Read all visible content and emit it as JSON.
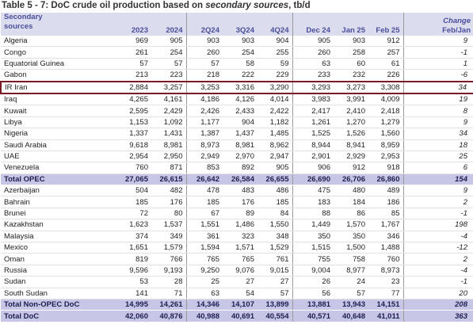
{
  "title": {
    "prefix": "Table 5 - 7: DoC crude oil production based on ",
    "emphasis": "secondary sources",
    "suffix": ", tb/d"
  },
  "table": {
    "header": {
      "first": [
        "Secondary",
        "sources"
      ],
      "columns": [
        "2023",
        "2024",
        "2Q24",
        "3Q24",
        "4Q24",
        "Dec 24",
        "Jan 25",
        "Feb 25"
      ],
      "change": [
        "Change",
        "Feb/Jan"
      ]
    },
    "rows": [
      {
        "cells": [
          "Algeria",
          "969",
          "905",
          "903",
          "903",
          "904",
          "905",
          "903",
          "912",
          "9"
        ]
      },
      {
        "cells": [
          "Congo",
          "261",
          "254",
          "260",
          "254",
          "255",
          "260",
          "258",
          "257",
          "-1"
        ]
      },
      {
        "cells": [
          "Equatorial Guinea",
          "57",
          "57",
          "57",
          "58",
          "59",
          "63",
          "60",
          "61",
          "1"
        ]
      },
      {
        "cells": [
          "Gabon",
          "213",
          "223",
          "218",
          "222",
          "229",
          "233",
          "232",
          "226",
          "-6"
        ]
      },
      {
        "cells": [
          "IR Iran",
          "2,884",
          "3,257",
          "3,253",
          "3,316",
          "3,290",
          "3,293",
          "3,273",
          "3,308",
          "34"
        ],
        "highlight": true
      },
      {
        "cells": [
          "Iraq",
          "4,265",
          "4,161",
          "4,186",
          "4,126",
          "4,014",
          "3,983",
          "3,991",
          "4,009",
          "19"
        ]
      },
      {
        "cells": [
          "Kuwait",
          "2,595",
          "2,429",
          "2,426",
          "2,433",
          "2,422",
          "2,417",
          "2,410",
          "2,418",
          "8"
        ]
      },
      {
        "cells": [
          "Libya",
          "1,153",
          "1,092",
          "1,177",
          "904",
          "1,182",
          "1,261",
          "1,270",
          "1,279",
          "9"
        ]
      },
      {
        "cells": [
          "Nigeria",
          "1,337",
          "1,431",
          "1,387",
          "1,437",
          "1,485",
          "1,525",
          "1,526",
          "1,560",
          "34"
        ]
      },
      {
        "cells": [
          "Saudi Arabia",
          "9,618",
          "8,981",
          "8,973",
          "8,981",
          "8,962",
          "8,944",
          "8,941",
          "8,959",
          "18"
        ]
      },
      {
        "cells": [
          "UAE",
          "2,954",
          "2,950",
          "2,949",
          "2,970",
          "2,947",
          "2,901",
          "2,929",
          "2,953",
          "25"
        ]
      },
      {
        "cells": [
          "Venezuela",
          "760",
          "871",
          "853",
          "892",
          "905",
          "906",
          "912",
          "918",
          "6"
        ]
      },
      {
        "cells": [
          "Total  OPEC",
          "27,065",
          "26,615",
          "26,642",
          "26,584",
          "26,655",
          "26,690",
          "26,706",
          "26,860",
          "154"
        ],
        "total": true
      },
      {
        "cells": [
          "Azerbaijan",
          "504",
          "482",
          "478",
          "483",
          "486",
          "475",
          "480",
          "489",
          "9"
        ]
      },
      {
        "cells": [
          "Bahrain",
          "185",
          "176",
          "185",
          "176",
          "185",
          "183",
          "184",
          "186",
          "2"
        ]
      },
      {
        "cells": [
          "Brunei",
          "72",
          "80",
          "67",
          "89",
          "84",
          "88",
          "86",
          "85",
          "-1"
        ]
      },
      {
        "cells": [
          "Kazakhstan",
          "1,623",
          "1,537",
          "1,551",
          "1,486",
          "1,550",
          "1,449",
          "1,570",
          "1,767",
          "198"
        ]
      },
      {
        "cells": [
          "Malaysia",
          "374",
          "349",
          "361",
          "323",
          "348",
          "350",
          "350",
          "346",
          "-4"
        ]
      },
      {
        "cells": [
          "Mexico",
          "1,651",
          "1,579",
          "1,594",
          "1,571",
          "1,529",
          "1,515",
          "1,500",
          "1,488",
          "-12"
        ]
      },
      {
        "cells": [
          "Oman",
          "819",
          "766",
          "765",
          "765",
          "761",
          "755",
          "758",
          "760",
          "2"
        ]
      },
      {
        "cells": [
          "Russia",
          "9,596",
          "9,193",
          "9,250",
          "9,076",
          "9,015",
          "9,004",
          "8,977",
          "8,973",
          "-4"
        ]
      },
      {
        "cells": [
          "Sudan",
          "53",
          "28",
          "25",
          "27",
          "27",
          "26",
          "24",
          "23",
          "-1"
        ]
      },
      {
        "cells": [
          "South Sudan",
          "141",
          "71",
          "63",
          "54",
          "57",
          "56",
          "57",
          "77",
          "20"
        ]
      },
      {
        "cells": [
          "Total Non-OPEC DoC",
          "14,995",
          "14,261",
          "14,346",
          "14,107",
          "13,899",
          "13,881",
          "13,943",
          "14,151",
          "208"
        ],
        "total": true
      },
      {
        "cells": [
          "Total DoC",
          "42,060",
          "40,876",
          "40,988",
          "40,691",
          "40,554",
          "40,571",
          "40,648",
          "41,011",
          "363"
        ],
        "total": true
      }
    ]
  }
}
